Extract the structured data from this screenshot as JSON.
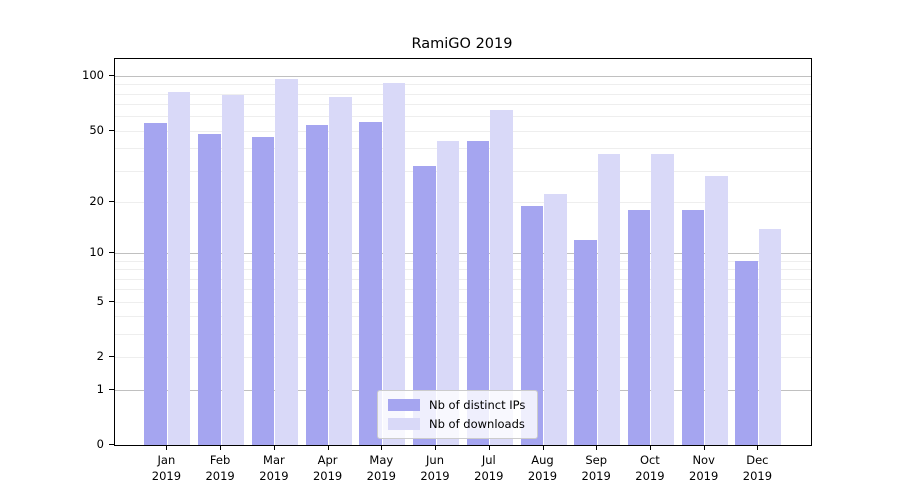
{
  "title": "RamiGO 2019",
  "chart_data": {
    "type": "bar",
    "title": "RamiGO 2019",
    "y_scale": "log10(1+x)",
    "ylim": [
      0,
      124
    ],
    "grid": true,
    "categories": [
      "Jan",
      "Feb",
      "Mar",
      "Apr",
      "May",
      "Jun",
      "Jul",
      "Aug",
      "Sep",
      "Oct",
      "Nov",
      "Dec"
    ],
    "x_year_label": "2019",
    "series": [
      {
        "name": "Nb of distinct IPs",
        "color": "#a5a5f0",
        "values": [
          55,
          48,
          46,
          54,
          56,
          32,
          44,
          19,
          12,
          18,
          18,
          9
        ]
      },
      {
        "name": "Nb of downloads",
        "color": "#d9d9f8",
        "values": [
          82,
          79,
          96,
          77,
          92,
          44,
          65,
          22,
          37,
          37,
          28,
          14
        ]
      }
    ],
    "y_ticks": [
      {
        "value": 0,
        "label": "0"
      },
      {
        "value": 1,
        "label": "1"
      },
      {
        "value": 2,
        "label": "2"
      },
      {
        "value": 5,
        "label": "5"
      },
      {
        "value": 10,
        "label": "10"
      },
      {
        "value": 20,
        "label": "20"
      },
      {
        "value": 50,
        "label": "50"
      },
      {
        "value": 100,
        "label": "100"
      }
    ],
    "gridlines": {
      "major": [
        1,
        10,
        100
      ],
      "minor": [
        2,
        3,
        4,
        5,
        6,
        7,
        8,
        9,
        20,
        30,
        40,
        50,
        60,
        70,
        80,
        90
      ]
    },
    "legend": {
      "position": "lower-center"
    },
    "colors": {
      "frame": "#000000",
      "background": "#ffffff",
      "grid_minor": "#e9e9e9",
      "grid_major": "#c2c2c2",
      "text": "#000000"
    }
  }
}
